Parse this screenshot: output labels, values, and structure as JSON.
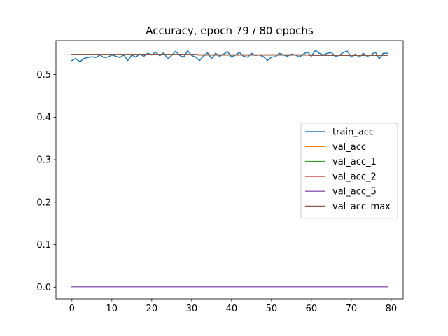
{
  "chart_data": {
    "type": "line",
    "title": "Accuracy, epoch 79 / 80 epochs",
    "xlabel": "",
    "ylabel": "",
    "xlim": [
      -4,
      83
    ],
    "ylim": [
      -0.0275,
      0.58
    ],
    "xticks": [
      0,
      10,
      20,
      30,
      40,
      50,
      60,
      70,
      80
    ],
    "yticks": [
      0.0,
      0.1,
      0.2,
      0.3,
      0.4,
      0.5
    ],
    "ytick_labels": [
      "0.0",
      "0.1",
      "0.2",
      "0.3",
      "0.4",
      "0.5"
    ],
    "grid": false,
    "legend": {
      "location": "center-right"
    },
    "x": [
      0,
      1,
      2,
      3,
      4,
      5,
      6,
      7,
      8,
      9,
      10,
      11,
      12,
      13,
      14,
      15,
      16,
      17,
      18,
      19,
      20,
      21,
      22,
      23,
      24,
      25,
      26,
      27,
      28,
      29,
      30,
      31,
      32,
      33,
      34,
      35,
      36,
      37,
      38,
      39,
      40,
      41,
      42,
      43,
      44,
      45,
      46,
      47,
      48,
      49,
      50,
      51,
      52,
      53,
      54,
      55,
      56,
      57,
      58,
      59,
      60,
      61,
      62,
      63,
      64,
      65,
      66,
      67,
      68,
      69,
      70,
      71,
      72,
      73,
      74,
      75,
      76,
      77,
      78,
      79
    ],
    "series": [
      {
        "name": "train_acc",
        "color": "#1f77b4",
        "values": [
          0.533,
          0.538,
          0.53,
          0.538,
          0.54,
          0.542,
          0.54,
          0.546,
          0.54,
          0.541,
          0.546,
          0.543,
          0.54,
          0.546,
          0.533,
          0.546,
          0.541,
          0.548,
          0.543,
          0.55,
          0.546,
          0.553,
          0.544,
          0.551,
          0.537,
          0.545,
          0.555,
          0.545,
          0.541,
          0.556,
          0.545,
          0.541,
          0.533,
          0.544,
          0.551,
          0.537,
          0.55,
          0.543,
          0.548,
          0.554,
          0.541,
          0.546,
          0.552,
          0.543,
          0.541,
          0.55,
          0.545,
          0.546,
          0.542,
          0.533,
          0.541,
          0.542,
          0.55,
          0.546,
          0.543,
          0.548,
          0.546,
          0.541,
          0.548,
          0.553,
          0.543,
          0.557,
          0.55,
          0.546,
          0.55,
          0.552,
          0.543,
          0.545,
          0.552,
          0.555,
          0.541,
          0.548,
          0.541,
          0.55,
          0.543,
          0.546,
          0.553,
          0.537,
          0.55,
          0.55
        ]
      },
      {
        "name": "val_acc",
        "color": "#ff7f0e",
        "values": [
          0.547,
          0.547,
          0.547,
          0.547,
          0.547,
          0.547,
          0.547,
          0.547,
          0.547,
          0.547,
          0.547,
          0.547,
          0.547,
          0.547,
          0.547,
          0.547,
          0.547,
          0.547,
          0.547,
          0.547,
          0.547,
          0.547,
          0.547,
          0.547,
          0.547,
          0.547,
          0.547,
          0.547,
          0.547,
          0.547,
          0.547,
          0.547,
          0.546,
          0.546,
          0.546,
          0.546,
          0.546,
          0.546,
          0.546,
          0.546,
          0.546,
          0.546,
          0.546,
          0.546,
          0.546,
          0.546,
          0.546,
          0.546,
          0.546,
          0.546,
          0.546,
          0.546,
          0.546,
          0.546,
          0.546,
          0.546,
          0.546,
          0.546,
          0.546,
          0.546,
          0.545,
          0.545,
          0.545,
          0.545,
          0.545,
          0.545,
          0.545,
          0.545,
          0.545,
          0.545,
          0.545,
          0.545,
          0.545,
          0.545,
          0.545,
          0.545,
          0.545,
          0.545,
          0.545,
          0.545
        ]
      },
      {
        "name": "val_acc_1",
        "color": "#2ca02c",
        "values": [
          0.547,
          0.547,
          0.547,
          0.547,
          0.547,
          0.547,
          0.547,
          0.547,
          0.547,
          0.547,
          0.547,
          0.547,
          0.547,
          0.547,
          0.547,
          0.547,
          0.547,
          0.547,
          0.547,
          0.547,
          0.547,
          0.547,
          0.547,
          0.547,
          0.547,
          0.547,
          0.547,
          0.547,
          0.547,
          0.547,
          0.547,
          0.547,
          0.546,
          0.546,
          0.546,
          0.546,
          0.546,
          0.546,
          0.546,
          0.546,
          0.546,
          0.546,
          0.546,
          0.546,
          0.546,
          0.546,
          0.546,
          0.546,
          0.546,
          0.546,
          0.546,
          0.546,
          0.546,
          0.546,
          0.546,
          0.546,
          0.546,
          0.546,
          0.546,
          0.546,
          0.545,
          0.545,
          0.545,
          0.545,
          0.545,
          0.545,
          0.545,
          0.545,
          0.545,
          0.545,
          0.545,
          0.545,
          0.545,
          0.545,
          0.545,
          0.545,
          0.545,
          0.545,
          0.545,
          0.545
        ]
      },
      {
        "name": "val_acc_2",
        "color": "#d62728",
        "values": [
          0.547,
          0.547,
          0.547,
          0.547,
          0.547,
          0.547,
          0.547,
          0.547,
          0.547,
          0.547,
          0.547,
          0.547,
          0.547,
          0.547,
          0.547,
          0.547,
          0.547,
          0.547,
          0.547,
          0.547,
          0.547,
          0.547,
          0.547,
          0.547,
          0.547,
          0.547,
          0.547,
          0.547,
          0.547,
          0.547,
          0.547,
          0.547,
          0.546,
          0.546,
          0.546,
          0.546,
          0.546,
          0.546,
          0.546,
          0.546,
          0.546,
          0.546,
          0.546,
          0.546,
          0.546,
          0.546,
          0.546,
          0.546,
          0.546,
          0.546,
          0.546,
          0.546,
          0.546,
          0.546,
          0.546,
          0.546,
          0.546,
          0.546,
          0.546,
          0.546,
          0.545,
          0.545,
          0.545,
          0.545,
          0.545,
          0.545,
          0.545,
          0.545,
          0.545,
          0.545,
          0.545,
          0.545,
          0.545,
          0.545,
          0.545,
          0.545,
          0.545,
          0.545,
          0.545,
          0.545
        ]
      },
      {
        "name": "val_acc_5",
        "color": "#9467bd",
        "values": [
          0.001,
          0.001,
          0.001,
          0.001,
          0.001,
          0.001,
          0.001,
          0.001,
          0.001,
          0.001,
          0.001,
          0.001,
          0.001,
          0.001,
          0.001,
          0.001,
          0.001,
          0.001,
          0.001,
          0.001,
          0.001,
          0.001,
          0.001,
          0.001,
          0.001,
          0.001,
          0.001,
          0.001,
          0.001,
          0.001,
          0.001,
          0.001,
          0.001,
          0.001,
          0.001,
          0.001,
          0.001,
          0.001,
          0.001,
          0.001,
          0.001,
          0.001,
          0.001,
          0.001,
          0.001,
          0.001,
          0.001,
          0.001,
          0.001,
          0.001,
          0.001,
          0.001,
          0.001,
          0.001,
          0.001,
          0.001,
          0.001,
          0.001,
          0.001,
          0.001,
          0.001,
          0.001,
          0.001,
          0.001,
          0.001,
          0.001,
          0.001,
          0.001,
          0.001,
          0.001,
          0.001,
          0.001,
          0.001,
          0.001,
          0.001,
          0.001,
          0.001,
          0.001,
          0.001,
          0.001
        ]
      },
      {
        "name": "val_acc_max",
        "color": "#8c564b",
        "values": [
          0.547,
          0.547,
          0.547,
          0.547,
          0.547,
          0.547,
          0.547,
          0.547,
          0.547,
          0.547,
          0.547,
          0.547,
          0.547,
          0.547,
          0.547,
          0.547,
          0.547,
          0.547,
          0.547,
          0.547,
          0.547,
          0.547,
          0.547,
          0.547,
          0.547,
          0.547,
          0.547,
          0.547,
          0.547,
          0.547,
          0.547,
          0.547,
          0.546,
          0.546,
          0.546,
          0.546,
          0.546,
          0.546,
          0.546,
          0.546,
          0.546,
          0.546,
          0.546,
          0.546,
          0.546,
          0.546,
          0.546,
          0.546,
          0.546,
          0.546,
          0.546,
          0.546,
          0.546,
          0.546,
          0.546,
          0.546,
          0.546,
          0.546,
          0.546,
          0.546,
          0.545,
          0.545,
          0.545,
          0.545,
          0.545,
          0.545,
          0.545,
          0.545,
          0.545,
          0.545,
          0.545,
          0.545,
          0.545,
          0.545,
          0.545,
          0.545,
          0.545,
          0.545,
          0.545,
          0.545
        ]
      }
    ]
  }
}
